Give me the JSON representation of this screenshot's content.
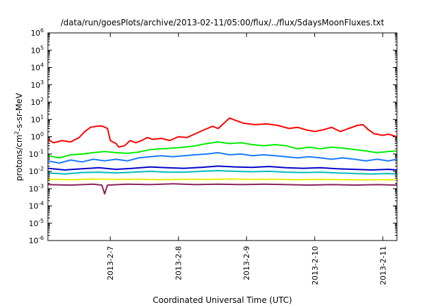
{
  "chart_data": {
    "type": "line",
    "title": "/data/run/goesPlots/archive/2013-02-11/05:00/flux/../flux/5daysMoonFluxes.txt",
    "xlabel": "Coordinated Universal Time (UTC)",
    "ylabel": "protons/cm²-s-sr-MeV",
    "y_scale": "log",
    "ylim": [
      "1e-6",
      "1e6"
    ],
    "xlim": [
      "2013-02-06 02:00",
      "2013-02-11 05:00"
    ],
    "x_tick_labels": [
      "2013-2-7",
      "2013-2-8",
      "2013-2-9",
      "2013-2-10",
      "2013-2-11"
    ],
    "x_ticks": [
      "2013-02-07",
      "2013-02-08",
      "2013-02-09",
      "2013-02-10",
      "2013-02-11"
    ],
    "y_tick_labels": [
      {
        "base": "10",
        "exp": "6"
      },
      {
        "base": "10",
        "exp": "5"
      },
      {
        "base": "10",
        "exp": "4"
      },
      {
        "base": "10",
        "exp": "3"
      },
      {
        "base": "10",
        "exp": "2"
      },
      {
        "base": "10",
        "exp": "1"
      },
      {
        "base": "10",
        "exp": "0"
      },
      {
        "base": "10",
        "exp": "-1"
      },
      {
        "base": "10",
        "exp": "-2"
      },
      {
        "base": "10",
        "exp": "-3"
      },
      {
        "base": "10",
        "exp": "-4"
      },
      {
        "base": "10",
        "exp": "-5"
      },
      {
        "base": "10",
        "exp": "-6"
      }
    ],
    "grid": false,
    "legend": "none",
    "series": [
      {
        "color": "#ff0000",
        "points": [
          [
            "2013-02-06 02:00",
            0.7
          ],
          [
            "2013-02-06 04:00",
            0.45
          ],
          [
            "2013-02-06 07:00",
            0.6
          ],
          [
            "2013-02-06 10:00",
            0.5
          ],
          [
            "2013-02-06 13:00",
            0.9
          ],
          [
            "2013-02-06 15:00",
            2.0
          ],
          [
            "2013-02-06 17:00",
            3.5
          ],
          [
            "2013-02-06 19:00",
            4.0
          ],
          [
            "2013-02-06 21:00",
            4.2
          ],
          [
            "2013-02-06 23:00",
            3.0
          ],
          [
            "2013-02-07 00:00",
            0.6
          ],
          [
            "2013-02-07 02:00",
            0.4
          ],
          [
            "2013-02-07 03:00",
            0.25
          ],
          [
            "2013-02-07 05:00",
            0.3
          ],
          [
            "2013-02-07 07:00",
            0.6
          ],
          [
            "2013-02-07 09:00",
            0.45
          ],
          [
            "2013-02-07 11:00",
            0.6
          ],
          [
            "2013-02-07 13:00",
            0.9
          ],
          [
            "2013-02-07 15:00",
            0.7
          ],
          [
            "2013-02-07 18:00",
            0.8
          ],
          [
            "2013-02-07 21:00",
            0.6
          ],
          [
            "2013-02-08 00:00",
            1.0
          ],
          [
            "2013-02-08 03:00",
            0.9
          ],
          [
            "2013-02-08 06:00",
            1.5
          ],
          [
            "2013-02-08 09:00",
            2.5
          ],
          [
            "2013-02-08 12:00",
            4.0
          ],
          [
            "2013-02-08 14:00",
            3.0
          ],
          [
            "2013-02-08 16:00",
            6.0
          ],
          [
            "2013-02-08 18:00",
            12.0
          ],
          [
            "2013-02-08 20:00",
            9.0
          ],
          [
            "2013-02-08 23:00",
            6.0
          ],
          [
            "2013-02-09 03:00",
            5.0
          ],
          [
            "2013-02-09 07:00",
            5.5
          ],
          [
            "2013-02-09 11:00",
            4.5
          ],
          [
            "2013-02-09 15:00",
            3.0
          ],
          [
            "2013-02-09 18:00",
            3.5
          ],
          [
            "2013-02-09 21:00",
            2.5
          ],
          [
            "2013-02-10 00:00",
            2.0
          ],
          [
            "2013-02-10 03:00",
            2.5
          ],
          [
            "2013-02-10 06:00",
            3.5
          ],
          [
            "2013-02-10 09:00",
            2.0
          ],
          [
            "2013-02-10 12:00",
            3.0
          ],
          [
            "2013-02-10 15:00",
            4.5
          ],
          [
            "2013-02-10 17:00",
            5.0
          ],
          [
            "2013-02-10 19:00",
            2.5
          ],
          [
            "2013-02-10 21:00",
            1.5
          ],
          [
            "2013-02-11 00:00",
            1.2
          ],
          [
            "2013-02-11 02:00",
            1.4
          ],
          [
            "2013-02-11 05:00",
            1.0
          ]
        ]
      },
      {
        "color": "#00ee00",
        "points": [
          [
            "2013-02-06 02:00",
            0.08
          ],
          [
            "2013-02-06 06:00",
            0.06
          ],
          [
            "2013-02-06 10:00",
            0.09
          ],
          [
            "2013-02-06 14:00",
            0.1
          ],
          [
            "2013-02-06 18:00",
            0.12
          ],
          [
            "2013-02-06 22:00",
            0.14
          ],
          [
            "2013-02-07 02:00",
            0.12
          ],
          [
            "2013-02-07 06:00",
            0.11
          ],
          [
            "2013-02-07 10:00",
            0.13
          ],
          [
            "2013-02-07 14:00",
            0.18
          ],
          [
            "2013-02-07 18:00",
            0.2
          ],
          [
            "2013-02-07 22:00",
            0.22
          ],
          [
            "2013-02-08 02:00",
            0.25
          ],
          [
            "2013-02-08 06:00",
            0.3
          ],
          [
            "2013-02-08 10:00",
            0.4
          ],
          [
            "2013-02-08 14:00",
            0.5
          ],
          [
            "2013-02-08 18:00",
            0.4
          ],
          [
            "2013-02-08 22:00",
            0.45
          ],
          [
            "2013-02-09 02:00",
            0.35
          ],
          [
            "2013-02-09 06:00",
            0.3
          ],
          [
            "2013-02-09 10:00",
            0.35
          ],
          [
            "2013-02-09 14:00",
            0.3
          ],
          [
            "2013-02-09 18:00",
            0.2
          ],
          [
            "2013-02-09 22:00",
            0.25
          ],
          [
            "2013-02-10 02:00",
            0.2
          ],
          [
            "2013-02-10 06:00",
            0.25
          ],
          [
            "2013-02-10 10:00",
            0.22
          ],
          [
            "2013-02-10 14:00",
            0.18
          ],
          [
            "2013-02-10 18:00",
            0.15
          ],
          [
            "2013-02-10 22:00",
            0.12
          ],
          [
            "2013-02-11 02:00",
            0.14
          ],
          [
            "2013-02-11 05:00",
            0.15
          ]
        ]
      },
      {
        "color": "#1a78ff",
        "points": [
          [
            "2013-02-06 02:00",
            0.04
          ],
          [
            "2013-02-06 06:00",
            0.03
          ],
          [
            "2013-02-06 10:00",
            0.045
          ],
          [
            "2013-02-06 14:00",
            0.035
          ],
          [
            "2013-02-06 18:00",
            0.05
          ],
          [
            "2013-02-06 22:00",
            0.04
          ],
          [
            "2013-02-07 02:00",
            0.05
          ],
          [
            "2013-02-07 06:00",
            0.04
          ],
          [
            "2013-02-07 10:00",
            0.06
          ],
          [
            "2013-02-07 14:00",
            0.07
          ],
          [
            "2013-02-07 18:00",
            0.08
          ],
          [
            "2013-02-07 22:00",
            0.07
          ],
          [
            "2013-02-08 02:00",
            0.08
          ],
          [
            "2013-02-08 06:00",
            0.09
          ],
          [
            "2013-02-08 10:00",
            0.1
          ],
          [
            "2013-02-08 14:00",
            0.12
          ],
          [
            "2013-02-08 18:00",
            0.09
          ],
          [
            "2013-02-08 22:00",
            0.1
          ],
          [
            "2013-02-09 02:00",
            0.08
          ],
          [
            "2013-02-09 06:00",
            0.09
          ],
          [
            "2013-02-09 10:00",
            0.08
          ],
          [
            "2013-02-09 14:00",
            0.07
          ],
          [
            "2013-02-09 18:00",
            0.06
          ],
          [
            "2013-02-09 22:00",
            0.07
          ],
          [
            "2013-02-10 02:00",
            0.06
          ],
          [
            "2013-02-10 06:00",
            0.05
          ],
          [
            "2013-02-10 10:00",
            0.06
          ],
          [
            "2013-02-10 14:00",
            0.05
          ],
          [
            "2013-02-10 18:00",
            0.04
          ],
          [
            "2013-02-10 22:00",
            0.05
          ],
          [
            "2013-02-11 02:00",
            0.04
          ],
          [
            "2013-02-11 05:00",
            0.05
          ]
        ]
      },
      {
        "color": "#0000cc",
        "points": [
          [
            "2013-02-06 02:00",
            0.015
          ],
          [
            "2013-02-06 08:00",
            0.012
          ],
          [
            "2013-02-06 14:00",
            0.014
          ],
          [
            "2013-02-06 20:00",
            0.016
          ],
          [
            "2013-02-07 02:00",
            0.013
          ],
          [
            "2013-02-07 08:00",
            0.015
          ],
          [
            "2013-02-07 14:00",
            0.018
          ],
          [
            "2013-02-07 20:00",
            0.016
          ],
          [
            "2013-02-08 02:00",
            0.015
          ],
          [
            "2013-02-08 08:00",
            0.017
          ],
          [
            "2013-02-08 14:00",
            0.02
          ],
          [
            "2013-02-08 20:00",
            0.018
          ],
          [
            "2013-02-09 02:00",
            0.017
          ],
          [
            "2013-02-09 08:00",
            0.019
          ],
          [
            "2013-02-09 14:00",
            0.016
          ],
          [
            "2013-02-09 20:00",
            0.015
          ],
          [
            "2013-02-10 02:00",
            0.016
          ],
          [
            "2013-02-10 08:00",
            0.014
          ],
          [
            "2013-02-10 14:00",
            0.013
          ],
          [
            "2013-02-10 20:00",
            0.012
          ],
          [
            "2013-02-11 02:00",
            0.013
          ],
          [
            "2013-02-11 05:00",
            0.012
          ]
        ]
      },
      {
        "color": "#00bbbb",
        "points": [
          [
            "2013-02-06 02:00",
            0.008
          ],
          [
            "2013-02-06 08:00",
            0.007
          ],
          [
            "2013-02-06 14:00",
            0.0085
          ],
          [
            "2013-02-06 20:00",
            0.009
          ],
          [
            "2013-02-07 02:00",
            0.008
          ],
          [
            "2013-02-07 08:00",
            0.009
          ],
          [
            "2013-02-07 14:00",
            0.01
          ],
          [
            "2013-02-07 20:00",
            0.009
          ],
          [
            "2013-02-08 02:00",
            0.009
          ],
          [
            "2013-02-08 08:00",
            0.01
          ],
          [
            "2013-02-08 14:00",
            0.011
          ],
          [
            "2013-02-08 20:00",
            0.01
          ],
          [
            "2013-02-09 02:00",
            0.0095
          ],
          [
            "2013-02-09 08:00",
            0.01
          ],
          [
            "2013-02-09 14:00",
            0.009
          ],
          [
            "2013-02-09 20:00",
            0.0085
          ],
          [
            "2013-02-10 02:00",
            0.009
          ],
          [
            "2013-02-10 08:00",
            0.008
          ],
          [
            "2013-02-10 14:00",
            0.0075
          ],
          [
            "2013-02-10 20:00",
            0.007
          ],
          [
            "2013-02-11 02:00",
            0.0075
          ],
          [
            "2013-02-11 05:00",
            0.007
          ]
        ]
      },
      {
        "color": "#eeee00",
        "points": [
          [
            "2013-02-06 02:00",
            0.0035
          ],
          [
            "2013-02-06 10:00",
            0.0033
          ],
          [
            "2013-02-06 18:00",
            0.0036
          ],
          [
            "2013-02-07 02:00",
            0.0034
          ],
          [
            "2013-02-07 10:00",
            0.0035
          ],
          [
            "2013-02-07 18:00",
            0.0033
          ],
          [
            "2013-02-08 02:00",
            0.0035
          ],
          [
            "2013-02-08 10:00",
            0.0034
          ],
          [
            "2013-02-08 18:00",
            0.0036
          ],
          [
            "2013-02-09 02:00",
            0.0034
          ],
          [
            "2013-02-09 10:00",
            0.0035
          ],
          [
            "2013-02-09 18:00",
            0.0033
          ],
          [
            "2013-02-10 02:00",
            0.0034
          ],
          [
            "2013-02-10 10:00",
            0.0033
          ],
          [
            "2013-02-10 18:00",
            0.0032
          ],
          [
            "2013-02-11 02:00",
            0.0033
          ],
          [
            "2013-02-11 05:00",
            0.0032
          ]
        ]
      },
      {
        "color": "#8b1f5c",
        "points": [
          [
            "2013-02-06 02:00",
            0.0017
          ],
          [
            "2013-02-06 10:00",
            0.0016
          ],
          [
            "2013-02-06 18:00",
            0.0018
          ],
          [
            "2013-02-06 21:00",
            0.0016
          ],
          [
            "2013-02-06 22:00",
            0.0005
          ],
          [
            "2013-02-06 23:00",
            0.0016
          ],
          [
            "2013-02-07 06:00",
            0.0018
          ],
          [
            "2013-02-07 14:00",
            0.0017
          ],
          [
            "2013-02-07 22:00",
            0.0019
          ],
          [
            "2013-02-08 06:00",
            0.0017
          ],
          [
            "2013-02-08 14:00",
            0.0018
          ],
          [
            "2013-02-08 22:00",
            0.0017
          ],
          [
            "2013-02-09 06:00",
            0.0018
          ],
          [
            "2013-02-09 14:00",
            0.0017
          ],
          [
            "2013-02-09 22:00",
            0.0016
          ],
          [
            "2013-02-10 06:00",
            0.0017
          ],
          [
            "2013-02-10 14:00",
            0.0016
          ],
          [
            "2013-02-10 22:00",
            0.0017
          ],
          [
            "2013-02-11 05:00",
            0.0016
          ]
        ]
      }
    ]
  }
}
